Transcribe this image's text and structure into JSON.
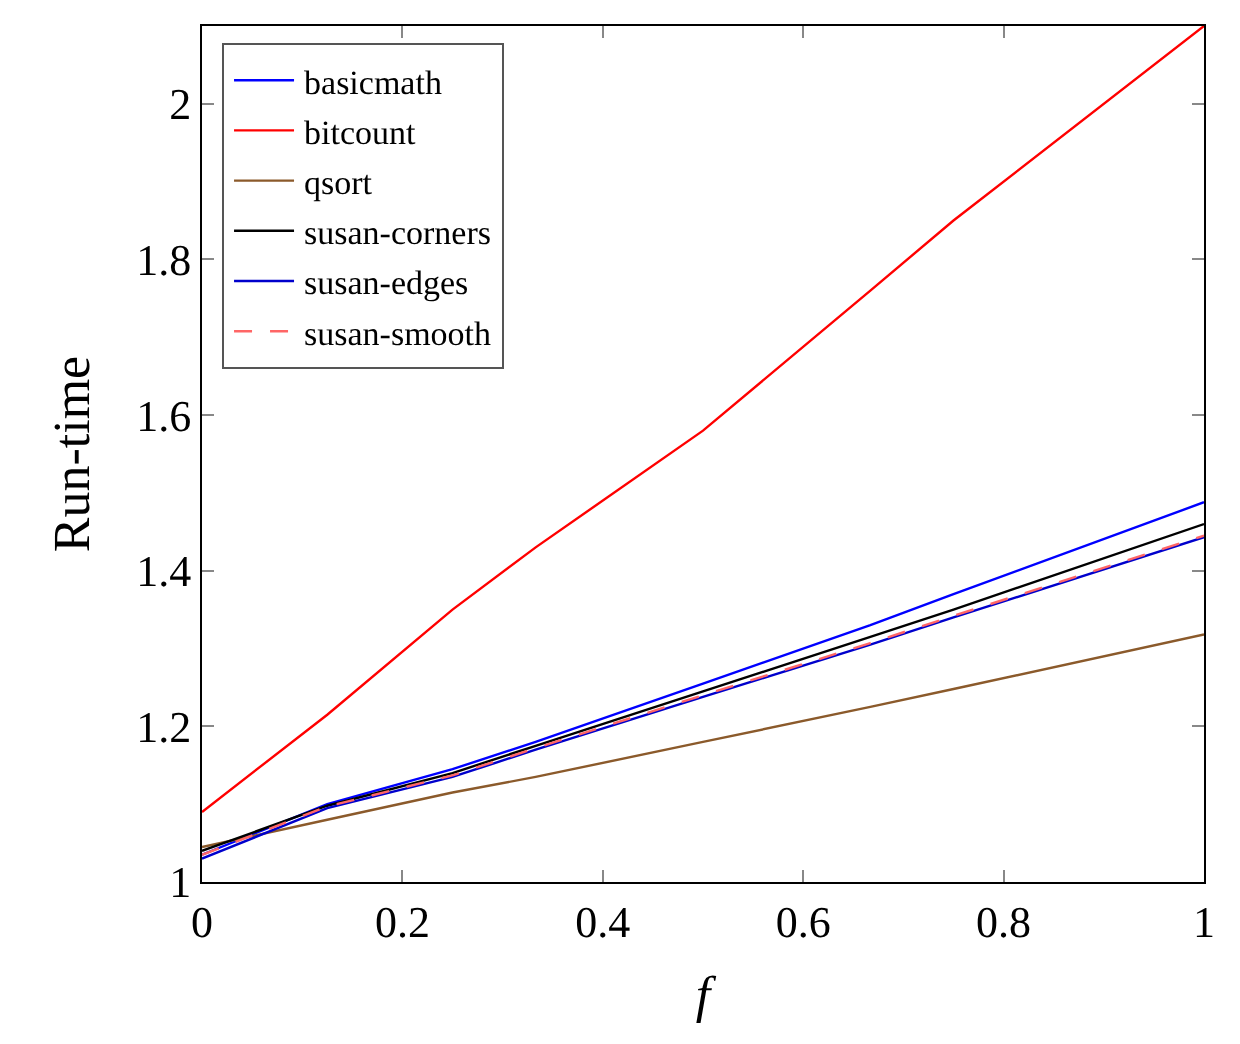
{
  "chart_data": {
    "type": "line",
    "xlabel": "f",
    "ylabel": "Run-time",
    "x": [
      0,
      0.125,
      0.25,
      0.333,
      0.5,
      0.667,
      0.75,
      1
    ],
    "series": [
      {
        "name": "basicmath",
        "color": "#0000ff",
        "values": [
          1.035,
          1.1,
          1.145,
          1.18,
          1.255,
          1.33,
          1.37,
          1.488
        ]
      },
      {
        "name": "bitcount",
        "color": "#ff0000",
        "values": [
          1.09,
          1.215,
          1.35,
          1.43,
          1.58,
          1.76,
          1.85,
          2.1
        ]
      },
      {
        "name": "qsort",
        "color": "#8b5a2b",
        "values": [
          1.045,
          1.08,
          1.115,
          1.135,
          1.18,
          1.225,
          1.248,
          1.318
        ]
      },
      {
        "name": "susan-corners",
        "color": "#000000",
        "values": [
          1.04,
          1.098,
          1.14,
          1.175,
          1.245,
          1.315,
          1.35,
          1.46
        ]
      },
      {
        "name": "susan-edges",
        "color": "#0000cc",
        "values": [
          1.03,
          1.095,
          1.135,
          1.17,
          1.238,
          1.305,
          1.34,
          1.443
        ]
      },
      {
        "name": "susan-smooth",
        "color": "#ff6666",
        "line_style": "dashed",
        "values": [
          1.035,
          1.097,
          1.137,
          1.172,
          1.24,
          1.307,
          1.342,
          1.445
        ]
      }
    ],
    "xlim": [
      0,
      1
    ],
    "xticks": [
      0,
      0.2,
      0.4,
      0.6,
      0.8,
      1
    ],
    "ylim": [
      1,
      2.1
    ],
    "yticks": [
      1,
      1.2,
      1.4,
      1.6,
      1.8,
      2
    ],
    "legend": "top left",
    "marker": "none",
    "line_style": "solid"
  }
}
